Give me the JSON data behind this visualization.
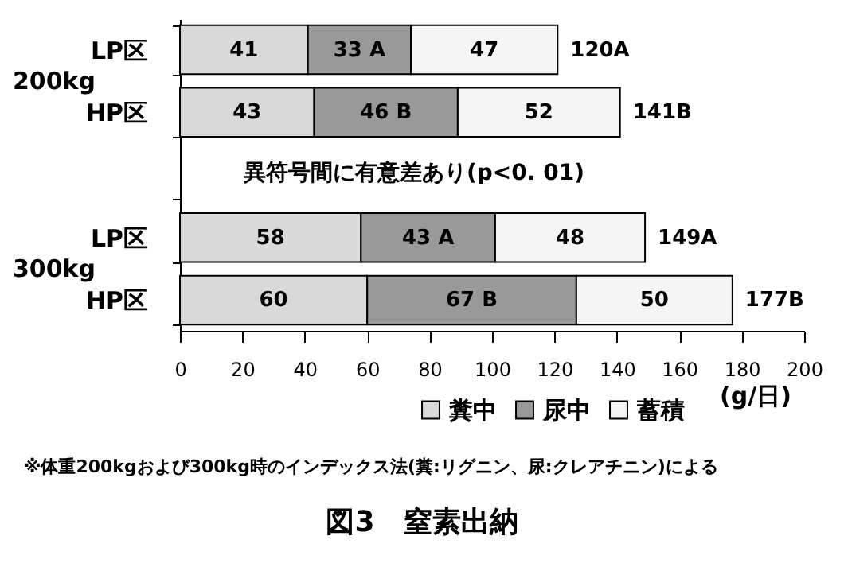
{
  "chart_data": {
    "type": "bar",
    "orientation": "horizontal",
    "stacked": true,
    "title": "図3　窒素出納",
    "xlabel": "(g/日)",
    "categories": [
      "LP区",
      "HP区",
      null,
      "LP区",
      "HP区"
    ],
    "series": [
      {
        "name": "糞中",
        "color": "#d9d9d9",
        "values": [
          41,
          43,
          null,
          58,
          60
        ],
        "value_labels": [
          "41",
          "43",
          null,
          "58",
          "60"
        ]
      },
      {
        "name": "尿中",
        "color": "#999999",
        "values": [
          33,
          46,
          null,
          43,
          67
        ],
        "value_labels": [
          "33 A",
          "46 B",
          null,
          "43 A",
          "67 B"
        ]
      },
      {
        "name": "蓄積",
        "color": "#f5f5f5",
        "values": [
          47,
          52,
          null,
          48,
          50
        ],
        "value_labels": [
          "47",
          "52",
          null,
          "48",
          "50"
        ]
      }
    ],
    "totals": [
      "120A",
      "141B",
      null,
      "149A",
      "177B"
    ],
    "xlim": [
      0,
      200
    ],
    "xticks": [
      0,
      20,
      40,
      60,
      80,
      100,
      120,
      140,
      160,
      180,
      200
    ],
    "grid": false,
    "legend": "bottom",
    "annotations": [
      "200kg",
      "300kg",
      "異符号間に有意差あり(p<0. 01)",
      "※体重200kgおよび300kg時のインデックス法(糞:リグニン、尿:クレアチニン)による"
    ]
  }
}
